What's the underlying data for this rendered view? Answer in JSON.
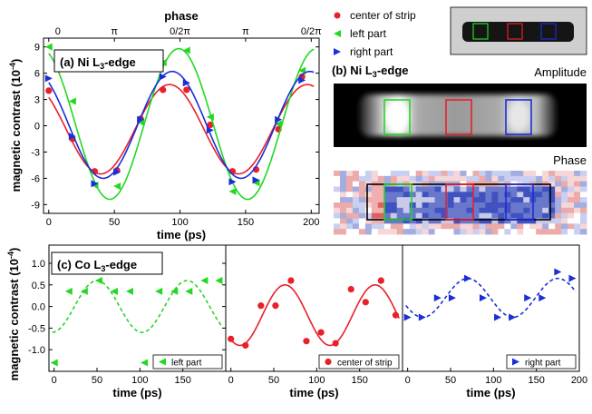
{
  "colors": {
    "red": "#e8202a",
    "green": "#22d822",
    "blue": "#1a2ed8",
    "purple": "#7a3aa0"
  },
  "chart_data": [
    {
      "id": "a",
      "type": "scatter",
      "panel_label": "(a)",
      "edge_label": "Ni L",
      "edge_sub": "3",
      "edge_suffix": "-edge",
      "xlabel": "time (ps)",
      "ylabel": "magnetic contrast (10",
      "ylabel_sup": "-4",
      "ylabel_close": ")",
      "top_axis_label": "phase",
      "top_ticks": [
        "0",
        "π",
        "0/2π",
        "π",
        "0/2π"
      ],
      "xlim": [
        -4,
        206
      ],
      "ylim": [
        -10,
        10
      ],
      "xticks": [
        0,
        50,
        100,
        150,
        200
      ],
      "yticks": [
        -9,
        -6,
        -3,
        0,
        3,
        6,
        9
      ],
      "legend": [
        {
          "name": "center of strip",
          "marker": "circle",
          "color": "#e8202a"
        },
        {
          "name": "left part",
          "marker": "triangle-left",
          "color": "#22d822"
        },
        {
          "name": "right part",
          "marker": "triangle-right",
          "color": "#1a2ed8"
        }
      ],
      "series": [
        {
          "name": "center of strip",
          "color": "#e8202a",
          "marker": "circle",
          "x": [
            0,
            18,
            35,
            52,
            70,
            87,
            105,
            123,
            140,
            158,
            175,
            193
          ],
          "y": [
            4,
            -1.5,
            -5.2,
            -5.1,
            0.8,
            4.1,
            4.1,
            0.1,
            -5.2,
            -5,
            -0.4,
            5.6
          ],
          "fit": {
            "amp": 5.1,
            "offset": -0.4,
            "center": 92,
            "period": 105
          }
        },
        {
          "name": "left part",
          "color": "#22d822",
          "marker": "triangle-left",
          "x": [
            0,
            18,
            35,
            52,
            70,
            87,
            105,
            123,
            140,
            158,
            175,
            193
          ],
          "y": [
            9,
            2.8,
            -6.8,
            -6.9,
            0.4,
            7.2,
            8.6,
            1,
            -7.5,
            -6.5,
            0.2,
            6.3
          ],
          "fit": {
            "amp": 8.6,
            "offset": 0.2,
            "center": 99,
            "period": 105
          }
        },
        {
          "name": "right part",
          "color": "#1a2ed8",
          "marker": "triangle-right",
          "x": [
            0,
            18,
            35,
            52,
            70,
            87,
            105,
            123,
            140,
            158,
            175,
            193
          ],
          "y": [
            5.4,
            -1.2,
            -6.6,
            -5.3,
            0.7,
            5.6,
            4.9,
            -0.5,
            -6.4,
            -6.2,
            0.7,
            5.2
          ],
          "fit": {
            "amp": 6.1,
            "offset": 0.1,
            "center": 94,
            "period": 105
          }
        }
      ]
    },
    {
      "id": "c1",
      "type": "scatter",
      "panel_label": "(c)",
      "edge_label": "Co L",
      "edge_sub": "3",
      "edge_suffix": "-edge",
      "xlabel": "time (ps)",
      "ylabel": "magnetic contrast (10",
      "ylabel_sup": "-4",
      "ylabel_close": ")",
      "xlim": [
        -6,
        200
      ],
      "ylim": [
        -1.5,
        1.42
      ],
      "xticks": [
        0,
        50,
        100,
        150
      ],
      "yticks": [
        -1.0,
        -0.5,
        0.0,
        0.5,
        1.0
      ],
      "ytick_labels": [
        "-1.0",
        "-0.5",
        "0.0",
        "0.5",
        "1.0"
      ],
      "legend": [
        {
          "name": "left part",
          "marker": "triangle-left",
          "color": "#22d822"
        }
      ],
      "series": [
        {
          "name": "left part",
          "color": "#22d822",
          "marker": "triangle-left",
          "x": [
            0,
            17,
            35,
            52,
            70,
            88,
            105,
            122,
            140,
            157,
            175,
            192
          ],
          "y": [
            -1.3,
            0.35,
            0.35,
            0.6,
            0.35,
            0.35,
            -1.3,
            0.35,
            0.35,
            0.35,
            0.6,
            0.6
          ],
          "fit": {
            "amp": 0.6,
            "offset": 0.0,
            "center": 50,
            "period": 105,
            "dashed": true
          }
        }
      ]
    },
    {
      "id": "c2",
      "type": "scatter",
      "xlabel": "time (ps)",
      "xlim": [
        -6,
        200
      ],
      "ylim": [
        -1.5,
        1.42
      ],
      "xticks": [
        0,
        50,
        100,
        150
      ],
      "legend": [
        {
          "name": "center of strip",
          "marker": "circle",
          "color": "#e8202a"
        }
      ],
      "series": [
        {
          "name": "center of strip",
          "color": "#e8202a",
          "marker": "circle",
          "x": [
            0,
            17,
            35,
            52,
            70,
            88,
            105,
            122,
            140,
            157,
            175,
            192
          ],
          "y": [
            -0.75,
            -0.9,
            0.02,
            0.02,
            0.6,
            -0.8,
            -0.6,
            -0.85,
            0.4,
            0.1,
            0.6,
            -0.2
          ],
          "fit": {
            "amp": 0.7,
            "offset": -0.2,
            "center": 63,
            "period": 105
          }
        }
      ]
    },
    {
      "id": "c3",
      "type": "scatter",
      "xlabel": "time (ps)",
      "xlim": [
        -6,
        200
      ],
      "ylim": [
        -1.5,
        1.42
      ],
      "xticks": [
        0,
        50,
        100,
        150,
        200
      ],
      "legend": [
        {
          "name": "right part",
          "marker": "triangle-right",
          "color": "#1a2ed8"
        }
      ],
      "series": [
        {
          "name": "right part",
          "color": "#1a2ed8",
          "marker": "triangle-right",
          "x": [
            0,
            17,
            35,
            52,
            70,
            88,
            105,
            122,
            140,
            157,
            175,
            192
          ],
          "y": [
            -0.25,
            -0.25,
            0.2,
            0.2,
            0.65,
            0.2,
            -0.25,
            -0.25,
            0.2,
            0.2,
            0.8,
            0.65
          ],
          "fit": {
            "amp": 0.45,
            "offset": 0.2,
            "center": 70,
            "period": 105,
            "dashed": true
          }
        }
      ]
    }
  ],
  "panel_b": {
    "label": "(b)",
    "edge_label": "Ni L",
    "edge_sub": "3",
    "edge_suffix": "-edge",
    "amplitude_title": "Amplitude",
    "phase_title": "Phase"
  }
}
